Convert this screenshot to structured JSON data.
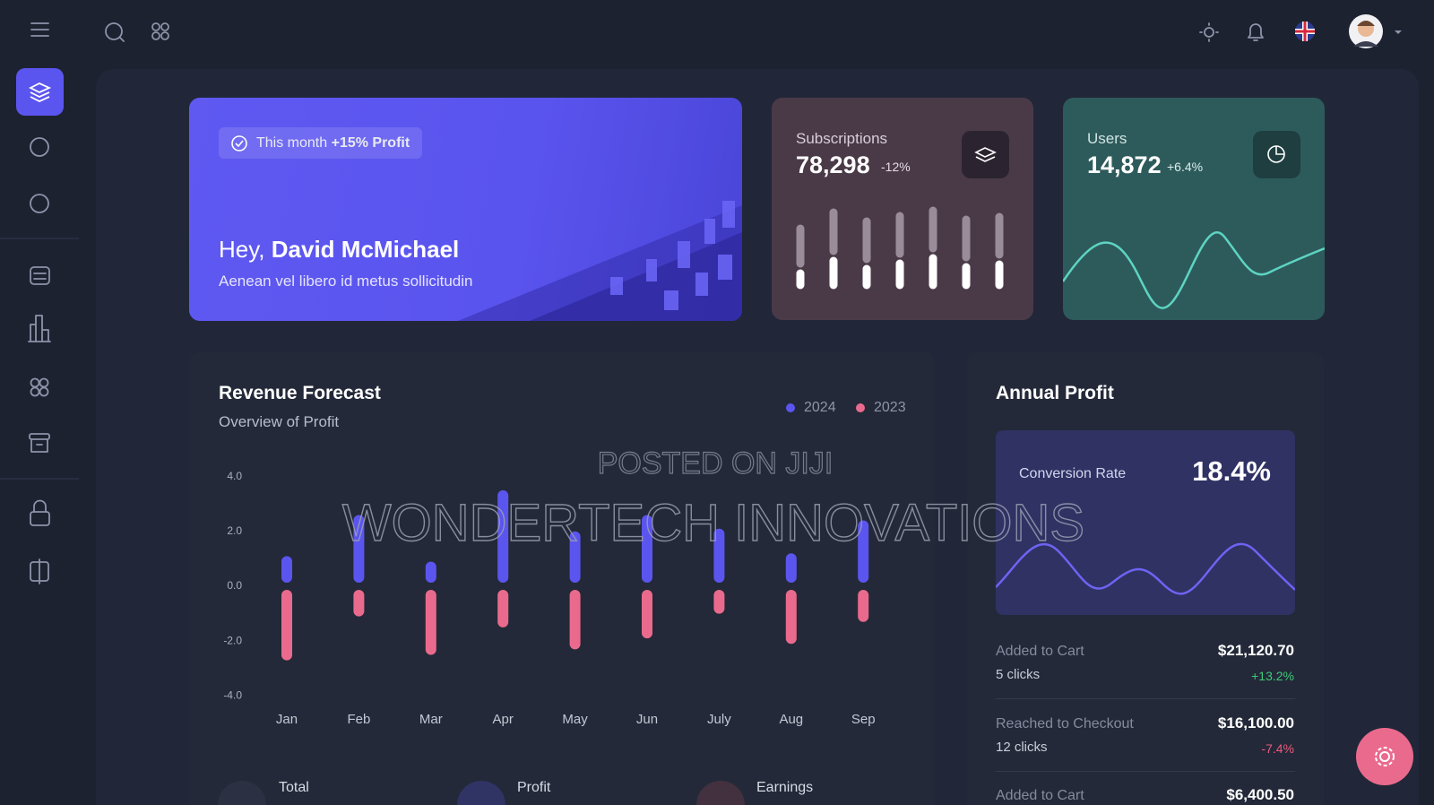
{
  "hero": {
    "badge_prefix": "This month",
    "badge_highlight": "+15% Profit",
    "greeting": "Hey,",
    "name": "David McMichael",
    "subtitle": "Aenean vel libero id metus sollicitudin"
  },
  "subscriptions": {
    "label": "Subscriptions",
    "value": "78,298",
    "change": "-12%"
  },
  "users": {
    "label": "Users",
    "value": "14,872",
    "change": "+6.4%"
  },
  "chart_data": {
    "type": "bar",
    "title": "Revenue Forecast",
    "subtitle": "Overview of Profit",
    "categories": [
      "Jan",
      "Feb",
      "Mar",
      "Apr",
      "May",
      "Jun",
      "July",
      "Aug",
      "Sep"
    ],
    "series": [
      {
        "name": "2024",
        "color": "#5b55f0",
        "values": [
          1.1,
          2.6,
          0.9,
          3.5,
          2.0,
          2.6,
          2.1,
          1.2,
          2.4
        ]
      },
      {
        "name": "2023",
        "color": "#ea6a8d",
        "values": [
          -2.7,
          -1.1,
          -2.5,
          -1.5,
          -2.3,
          -1.9,
          -1.0,
          -2.1,
          -1.3
        ]
      }
    ],
    "ylim": [
      -4,
      4
    ],
    "yticks": [
      {
        "value": 4,
        "label": "4.0"
      },
      {
        "value": 2,
        "label": "2.0"
      },
      {
        "value": 0,
        "label": "0.0"
      },
      {
        "value": -2,
        "label": "-2.0"
      },
      {
        "value": -4,
        "label": "-4.0"
      }
    ],
    "grid": false
  },
  "stats": [
    "Total",
    "Profit",
    "Earnings"
  ],
  "annual_profit": {
    "title": "Annual Profit",
    "conversion_label": "Conversion Rate",
    "conversion_value": "18.4%",
    "items": [
      {
        "label": "Added to Cart",
        "clicks": "5 clicks",
        "amount": "$21,120.70",
        "change": "+13.2%"
      },
      {
        "label": "Reached to Checkout",
        "clicks": "12 clicks",
        "amount": "$16,100.00",
        "change": "-7.4%"
      },
      {
        "label": "Added to Cart",
        "amount": "$6,400.50"
      }
    ]
  },
  "watermark": {
    "line1": "POSTED ON JIJI",
    "line2": "WONDERTECH INNOVATIONS"
  }
}
